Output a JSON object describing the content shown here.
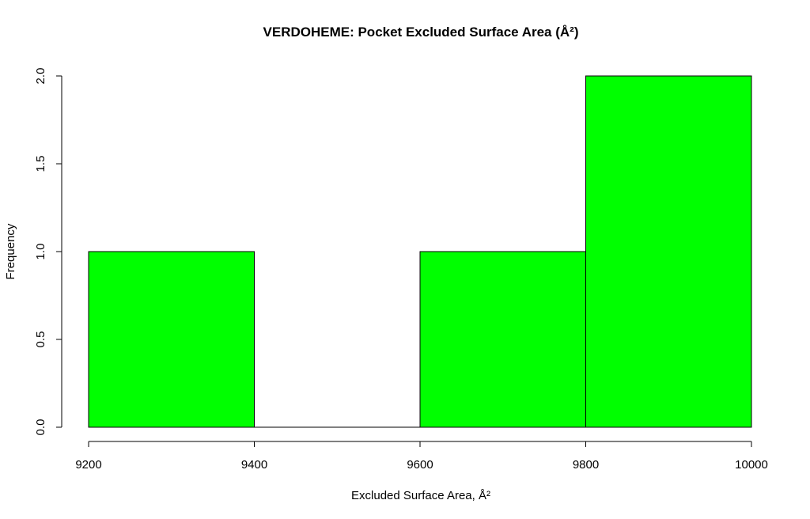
{
  "chart_data": {
    "type": "bar",
    "title": "VERDOHEME: Pocket Excluded Surface Area (Å²)",
    "xlabel": "Excluded Surface Area, Å²",
    "ylabel": "Frequency",
    "bins": [
      {
        "start": 9200,
        "end": 9400,
        "count": 1
      },
      {
        "start": 9400,
        "end": 9600,
        "count": 0
      },
      {
        "start": 9600,
        "end": 9800,
        "count": 1
      },
      {
        "start": 9800,
        "end": 10000,
        "count": 2
      }
    ],
    "xticks": [
      9200,
      9400,
      9600,
      9800,
      10000
    ],
    "xtick_labels": [
      "9200",
      "9400",
      "9600",
      "9800",
      "10000"
    ],
    "yticks": [
      0.0,
      0.5,
      1.0,
      1.5,
      2.0
    ],
    "ytick_labels": [
      "0.0",
      "0.5",
      "1.0",
      "1.5",
      "2.0"
    ],
    "xlim": [
      9200,
      10000
    ],
    "ylim": [
      0,
      2
    ],
    "bar_color": "#00ff00",
    "grid": false,
    "legend": "none"
  }
}
